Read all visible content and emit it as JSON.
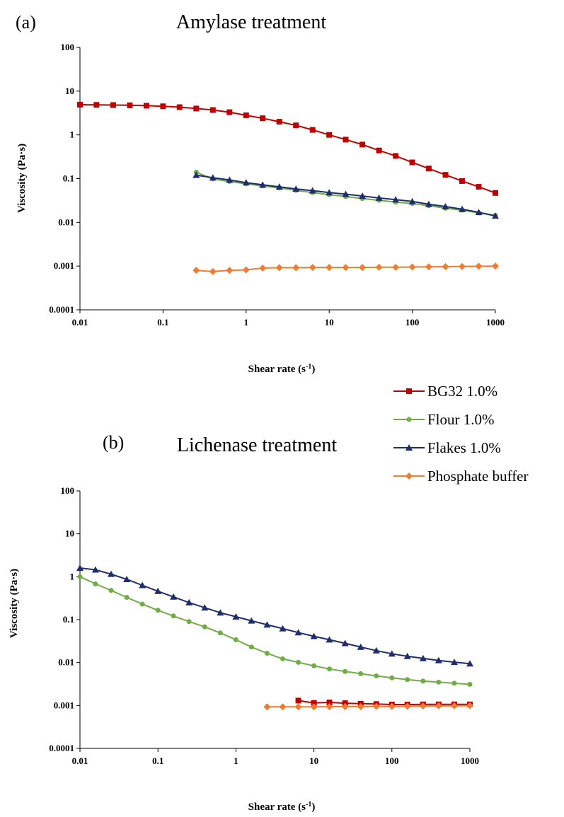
{
  "chart_data": [
    {
      "type": "line",
      "panel_tag": "(a)",
      "title": "Amylase treatment",
      "xlabel": "Shear rate (s",
      "xlabel_sup": "-1",
      "xlabel_suffix": ")",
      "ylabel": "Viscosity (Pa·s)",
      "xscale": "log",
      "yscale": "log",
      "xlim": [
        0.01,
        1000
      ],
      "ylim": [
        0.0001,
        100
      ],
      "x_ticks": [
        "0.01",
        "0.1",
        "1",
        "10",
        "100",
        "1000"
      ],
      "y_ticks": [
        "0.0001",
        "0.001",
        "0.01",
        "0.1",
        "1",
        "10",
        "100"
      ],
      "grid": false,
      "series": [
        {
          "name": "BG32 1.0%",
          "color": "#c00000",
          "marker": "square",
          "x": [
            0.01,
            0.0158,
            0.0251,
            0.0398,
            0.0631,
            0.1,
            0.158,
            0.251,
            0.398,
            0.631,
            1,
            1.58,
            2.51,
            3.98,
            6.31,
            10,
            15.8,
            25.1,
            39.8,
            63.1,
            100,
            158,
            251,
            398,
            631,
            1000
          ],
          "y": [
            4.9,
            4.85,
            4.8,
            4.75,
            4.65,
            4.5,
            4.3,
            4.0,
            3.7,
            3.3,
            2.8,
            2.4,
            2.0,
            1.65,
            1.3,
            1.0,
            0.78,
            0.6,
            0.44,
            0.33,
            0.235,
            0.17,
            0.122,
            0.088,
            0.065,
            0.047
          ]
        },
        {
          "name": "Flour 1.0%",
          "color": "#70ad47",
          "marker": "circle",
          "x": [
            0.251,
            0.398,
            0.631,
            1,
            1.58,
            2.51,
            3.98,
            6.31,
            10,
            15.8,
            25.1,
            39.8,
            63.1,
            100,
            158,
            251,
            398,
            631,
            1000
          ],
          "y": [
            0.14,
            0.098,
            0.086,
            0.076,
            0.068,
            0.061,
            0.054,
            0.048,
            0.043,
            0.039,
            0.035,
            0.032,
            0.029,
            0.027,
            0.024,
            0.021,
            0.019,
            0.0165,
            0.0145
          ]
        },
        {
          "name": "Flakes 1.0%",
          "color": "#1f2d6b",
          "marker": "triangle",
          "x": [
            0.251,
            0.398,
            0.631,
            1,
            1.58,
            2.51,
            3.98,
            6.31,
            10,
            15.8,
            25.1,
            39.8,
            63.1,
            100,
            158,
            251,
            398,
            631,
            1000
          ],
          "y": [
            0.12,
            0.105,
            0.093,
            0.081,
            0.072,
            0.065,
            0.058,
            0.053,
            0.048,
            0.044,
            0.04,
            0.036,
            0.033,
            0.03,
            0.026,
            0.023,
            0.02,
            0.017,
            0.014
          ]
        },
        {
          "name": "Phosphate buffer",
          "color": "#ed7d31",
          "marker": "diamond",
          "x": [
            0.251,
            0.398,
            0.631,
            1,
            1.58,
            2.51,
            3.98,
            6.31,
            10,
            15.8,
            25.1,
            39.8,
            63.1,
            100,
            158,
            251,
            398,
            631,
            1000
          ],
          "y": [
            0.0008,
            0.00075,
            0.0008,
            0.00082,
            0.0009,
            0.00092,
            0.00092,
            0.00093,
            0.00093,
            0.00093,
            0.00093,
            0.00094,
            0.00094,
            0.00095,
            0.00096,
            0.00097,
            0.00098,
            0.00099,
            0.001
          ]
        }
      ]
    },
    {
      "type": "line",
      "panel_tag": "(b)",
      "title": "Lichenase treatment",
      "xlabel": "Shear rate (s",
      "xlabel_sup": "-1",
      "xlabel_suffix": ")",
      "ylabel": "Viscosity (Pa·s)",
      "xscale": "log",
      "yscale": "log",
      "xlim": [
        0.01,
        1000
      ],
      "ylim": [
        0.0001,
        100
      ],
      "x_ticks": [
        "0.01",
        "0.1",
        "1",
        "10",
        "100",
        "1000"
      ],
      "y_ticks": [
        "0.0001",
        "0.001",
        "0.01",
        "0.1",
        "1",
        "10",
        "100"
      ],
      "grid": false,
      "series": [
        {
          "name": "BG32 1.0%",
          "color": "#c00000",
          "marker": "square",
          "x": [
            6.31,
            10,
            15.8,
            25.1,
            39.8,
            63.1,
            100,
            158,
            251,
            398,
            631,
            1000
          ],
          "y": [
            0.0013,
            0.00115,
            0.00118,
            0.00113,
            0.0011,
            0.00108,
            0.00105,
            0.00105,
            0.00106,
            0.00106,
            0.00106,
            0.00106
          ]
        },
        {
          "name": "Flour 1.0%",
          "color": "#70ad47",
          "marker": "circle",
          "x": [
            0.01,
            0.0158,
            0.0251,
            0.0398,
            0.0631,
            0.1,
            0.158,
            0.251,
            0.398,
            0.631,
            1,
            1.58,
            2.51,
            3.98,
            6.31,
            10,
            15.8,
            25.1,
            39.8,
            63.1,
            100,
            158,
            251,
            398,
            631,
            1000
          ],
          "y": [
            1.0,
            0.68,
            0.48,
            0.33,
            0.23,
            0.165,
            0.122,
            0.09,
            0.068,
            0.049,
            0.034,
            0.023,
            0.0165,
            0.0122,
            0.0101,
            0.0084,
            0.0071,
            0.0062,
            0.0055,
            0.0049,
            0.0044,
            0.004,
            0.0037,
            0.0035,
            0.0033,
            0.0031
          ]
        },
        {
          "name": "Flakes 1.0%",
          "color": "#1f2d6b",
          "marker": "triangle",
          "x": [
            0.01,
            0.0158,
            0.0251,
            0.0398,
            0.0631,
            0.1,
            0.158,
            0.251,
            0.398,
            0.631,
            1,
            1.58,
            2.51,
            3.98,
            6.31,
            10,
            15.8,
            25.1,
            39.8,
            63.1,
            100,
            158,
            251,
            398,
            631,
            1000
          ],
          "y": [
            1.6,
            1.45,
            1.15,
            0.87,
            0.63,
            0.46,
            0.34,
            0.25,
            0.19,
            0.145,
            0.117,
            0.094,
            0.076,
            0.062,
            0.05,
            0.041,
            0.034,
            0.028,
            0.023,
            0.019,
            0.016,
            0.014,
            0.0125,
            0.0112,
            0.0102,
            0.0094
          ]
        },
        {
          "name": "Phosphate buffer",
          "color": "#ed7d31",
          "marker": "diamond",
          "x": [
            2.51,
            3.98,
            6.31,
            10,
            15.8,
            25.1,
            39.8,
            63.1,
            100,
            158,
            251,
            398,
            631,
            1000
          ],
          "y": [
            0.00093,
            0.00093,
            0.00093,
            0.00093,
            0.00094,
            0.00094,
            0.00094,
            0.00095,
            0.00095,
            0.00096,
            0.00097,
            0.00098,
            0.00098,
            0.00099
          ]
        }
      ]
    }
  ],
  "legend": {
    "placement": "right-middle",
    "entries": [
      {
        "name": "BG32 1.0%",
        "color": "#c00000",
        "marker": "square"
      },
      {
        "name": "Flour 1.0%",
        "color": "#70ad47",
        "marker": "circle"
      },
      {
        "name": "Flakes 1.0%",
        "color": "#1f2d6b",
        "marker": "triangle"
      },
      {
        "name": "Phosphate buffer",
        "color": "#ed7d31",
        "marker": "diamond"
      }
    ]
  }
}
